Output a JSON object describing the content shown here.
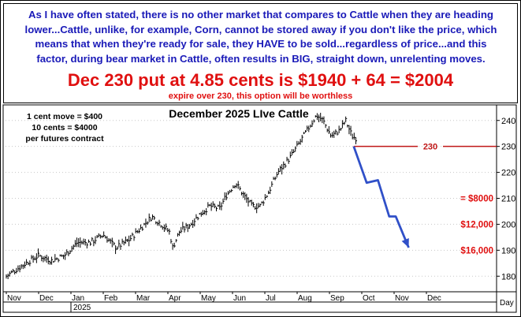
{
  "header": {
    "lines": [
      "As I have often stated, there is no other market that compares to Cattle when they are heading",
      "lower...Cattle, unlike, for example, Corn, cannot be stored away if you don't like the price, which",
      "means that when they're ready for sale, they HAVE to be sold...regardless of price...and this",
      "factor, during bear market in Cattle, often results in BIG, straight down, unrelenting moves."
    ],
    "headline": "Dec 230 put at 4.85 cents is $1940 + 64 = $2004",
    "subline": "expire over 230, this option will be worthless"
  },
  "colors": {
    "header_text": "#1a1ab8",
    "accent_red": "#e01010",
    "projection": "#3050c8",
    "bars": "#000000"
  },
  "chart_data": {
    "type": "ohlc-bar",
    "title": "December 2025 LIve Cattle",
    "notes": [
      "1 cent move = $400",
      "10 cents = $4000",
      "per futures contract"
    ],
    "y_axis": {
      "ylim": [
        174,
        246
      ],
      "ticks": [
        180,
        190,
        200,
        210,
        220,
        230,
        240
      ],
      "side": "right"
    },
    "x_axis": {
      "months": [
        "Nov",
        "Dec",
        "Jan",
        "Feb",
        "Mar",
        "Apr",
        "May",
        "Jun",
        "Jul",
        "Aug",
        "Sep",
        "Oct",
        "Nov",
        "Dec"
      ],
      "year_label": "2025",
      "corner_label": "Day"
    },
    "price_path": [
      {
        "m": 0.0,
        "p": 180
      },
      {
        "m": 0.6,
        "p": 185
      },
      {
        "m": 1.0,
        "p": 188
      },
      {
        "m": 1.4,
        "p": 186
      },
      {
        "m": 1.8,
        "p": 188
      },
      {
        "m": 2.2,
        "p": 193
      },
      {
        "m": 2.6,
        "p": 193
      },
      {
        "m": 3.0,
        "p": 196
      },
      {
        "m": 3.4,
        "p": 191
      },
      {
        "m": 3.8,
        "p": 194
      },
      {
        "m": 4.2,
        "p": 199
      },
      {
        "m": 4.5,
        "p": 203
      },
      {
        "m": 4.8,
        "p": 200
      },
      {
        "m": 5.05,
        "p": 197
      },
      {
        "m": 5.15,
        "p": 191
      },
      {
        "m": 5.35,
        "p": 197
      },
      {
        "m": 5.7,
        "p": 200
      },
      {
        "m": 6.0,
        "p": 204
      },
      {
        "m": 6.3,
        "p": 207
      },
      {
        "m": 6.6,
        "p": 206
      },
      {
        "m": 6.8,
        "p": 211
      },
      {
        "m": 7.1,
        "p": 216
      },
      {
        "m": 7.3,
        "p": 212
      },
      {
        "m": 7.6,
        "p": 207
      },
      {
        "m": 7.85,
        "p": 207
      },
      {
        "m": 8.1,
        "p": 212
      },
      {
        "m": 8.4,
        "p": 220
      },
      {
        "m": 8.8,
        "p": 226
      },
      {
        "m": 9.1,
        "p": 232
      },
      {
        "m": 9.4,
        "p": 238
      },
      {
        "m": 9.6,
        "p": 242
      },
      {
        "m": 9.8,
        "p": 240
      },
      {
        "m": 10.05,
        "p": 234
      },
      {
        "m": 10.3,
        "p": 236
      },
      {
        "m": 10.5,
        "p": 240
      },
      {
        "m": 10.7,
        "p": 234
      },
      {
        "m": 10.85,
        "p": 233
      }
    ],
    "strike_line": {
      "value": 230,
      "label": "230",
      "color": "#c01818",
      "start_m": 10.75
    },
    "projection": [
      {
        "m": 10.75,
        "p": 230
      },
      {
        "m": 11.15,
        "p": 216
      },
      {
        "m": 11.5,
        "p": 217
      },
      {
        "m": 11.85,
        "p": 203
      },
      {
        "m": 12.05,
        "p": 203
      },
      {
        "m": 12.45,
        "p": 191
      }
    ],
    "profit_levels": [
      {
        "value": 210,
        "label": "= $8000"
      },
      {
        "value": 200,
        "label": "$12,000"
      },
      {
        "value": 190,
        "label": "$16,000"
      }
    ]
  }
}
